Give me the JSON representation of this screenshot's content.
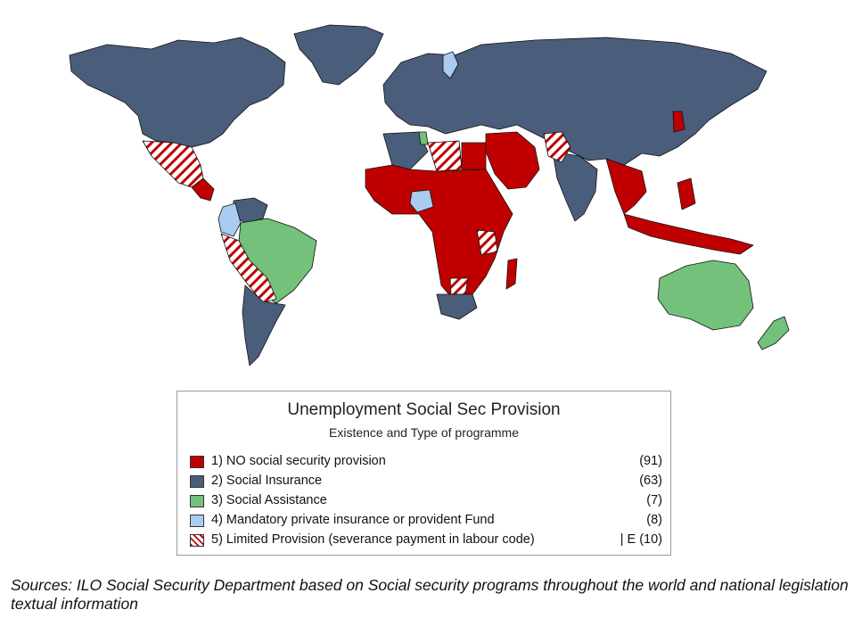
{
  "legend": {
    "title": "Unemployment Social Sec Provision",
    "subtitle": "Existence and Type of programme",
    "items": [
      {
        "label": "1) NO social security provision",
        "count": "(91)",
        "color": "#c00000",
        "pattern": "solid"
      },
      {
        "label": "2) Social Insurance",
        "count": "(63)",
        "color": "#4a5d7a",
        "pattern": "solid"
      },
      {
        "label": "3) Social Assistance",
        "count": "(7)",
        "color": "#73c17a",
        "pattern": "solid"
      },
      {
        "label": "4) Mandatory private insurance or provident Fund",
        "count": "(8)",
        "color": "#a9ccf0",
        "pattern": "solid"
      },
      {
        "label": "5) Limited Provision (severance payment in labour code)",
        "count": "| E  (10)",
        "color": "#c00000",
        "pattern": "hatched"
      }
    ]
  },
  "source": "Sources: ILO Social Security Department based on Social security programs throughout the world and national legislation textual information",
  "colors": {
    "none": "#c00000",
    "insurance": "#4a5d7a",
    "assistance": "#73c17a",
    "private": "#a9ccf0",
    "limited_stripe": "#c00000"
  }
}
